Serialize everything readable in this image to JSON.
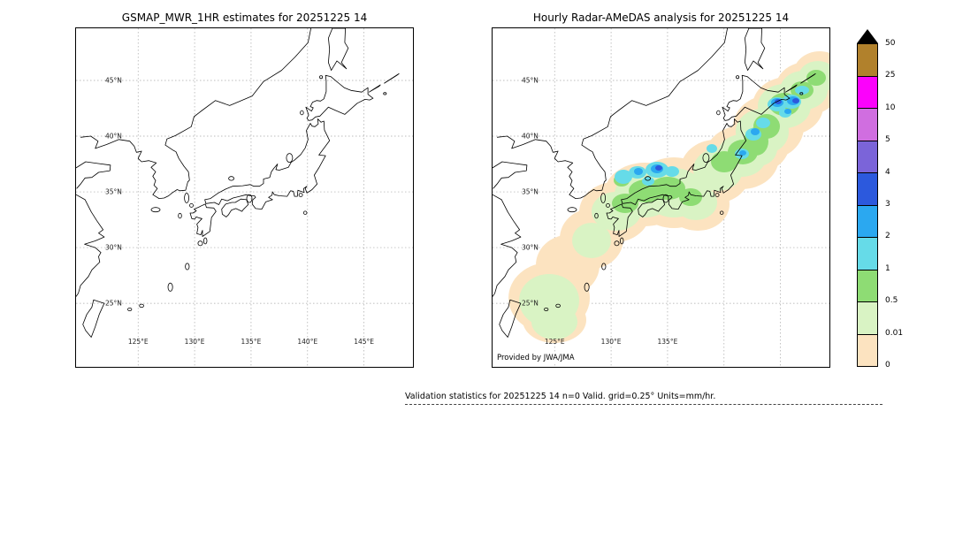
{
  "panels": {
    "left": {
      "title": "GSMAP_MWR_1HR estimates for 20251225 14",
      "lat_ticks": [
        "45°N",
        "40°N",
        "35°N",
        "30°N",
        "25°N"
      ],
      "lon_ticks": [
        "125°E",
        "130°E",
        "135°E",
        "140°E",
        "145°E"
      ]
    },
    "right": {
      "title": "Hourly Radar-AMeDAS analysis for 20251225 14",
      "lat_ticks": [
        "45°N",
        "40°N",
        "35°N",
        "30°N",
        "25°N"
      ],
      "lon_ticks": [
        "125°E",
        "130°E",
        "135°E"
      ],
      "credit": "Provided by JWA/JMA"
    }
  },
  "colorbar": {
    "labels": [
      "50",
      "25",
      "10",
      "5",
      "4",
      "3",
      "2",
      "1",
      "0.5",
      "0.01",
      "0"
    ],
    "colors": [
      "#b1812c",
      "#fb02fb",
      "#d06ee0",
      "#7b64d9",
      "#2c59dd",
      "#2ba8f0",
      "#66dbe8",
      "#8edc74",
      "#d9f3c4",
      "#fce3c0"
    ],
    "arrow_color": "#000000"
  },
  "map_style": {
    "coast_color": "#000000",
    "grid_color": "#a8a8a8",
    "land_color": "#ffffff"
  },
  "footer": {
    "stats": "Validation statistics for 20251225 14  n=0 Valid. grid=0.25° Units=mm/hr."
  }
}
